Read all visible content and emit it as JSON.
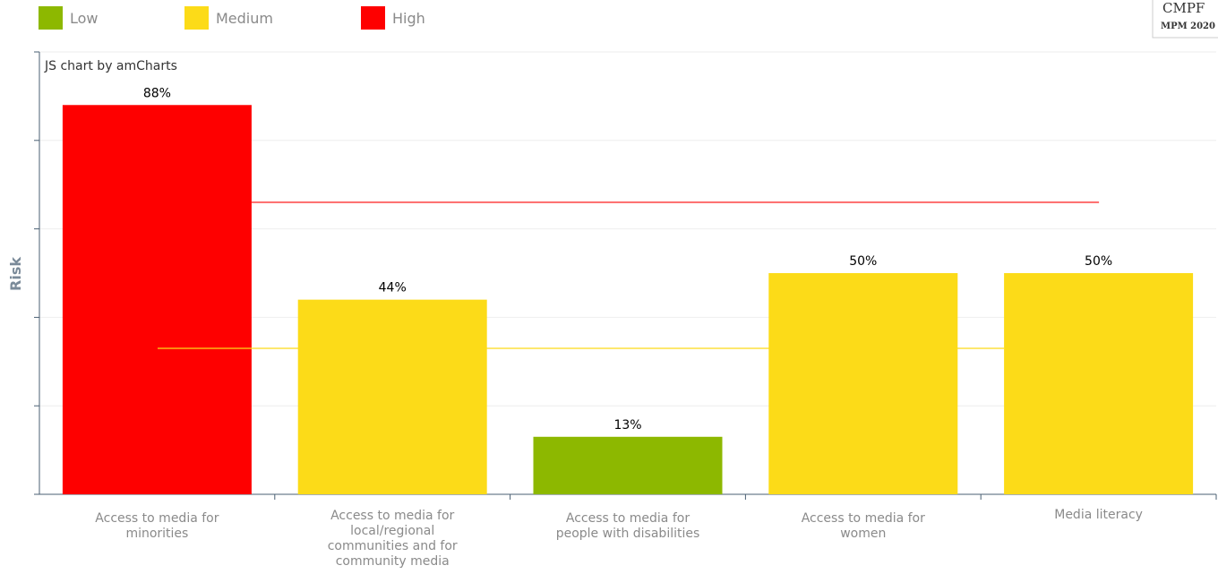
{
  "legend": [
    {
      "label": "Low",
      "color": "#8db800"
    },
    {
      "label": "Medium",
      "color": "#fcdb18"
    },
    {
      "label": "High",
      "color": "#fe0000"
    }
  ],
  "credit": "JS chart by amCharts",
  "brand": {
    "line1": "CMPF",
    "line2": "MPM 2020"
  },
  "chart_data": {
    "type": "bar",
    "ylabel": "Risk",
    "xlabel": "",
    "ylim": [
      0,
      100
    ],
    "grid": true,
    "legend_position": "top-left",
    "categories": [
      [
        "Access to media for",
        "minorities"
      ],
      [
        "Access to media for",
        "local/regional",
        "communities and for",
        "community media"
      ],
      [
        "Access to media for",
        "people with disabilities"
      ],
      [
        "Access to media for",
        "women"
      ],
      [
        "Media literacy"
      ]
    ],
    "values": [
      88,
      44,
      13,
      50,
      50
    ],
    "value_labels": [
      "88%",
      "44%",
      "13%",
      "50%",
      "50%"
    ],
    "colors": [
      "#fe0000",
      "#fcdb18",
      "#8db800",
      "#fcdb18",
      "#fcdb18"
    ],
    "thresholds": [
      {
        "value": 66,
        "color": "#fe0000"
      },
      {
        "value": 33,
        "color": "#fcdb18"
      }
    ]
  }
}
